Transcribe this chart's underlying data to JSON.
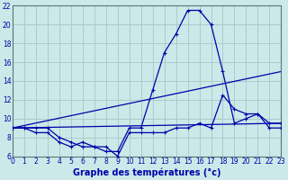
{
  "xlabel": "Graphe des températures (°c)",
  "bg_color": "#cce8e8",
  "grid_color": "#aacccc",
  "line_color": "#0000aa",
  "xmin": 0,
  "xmax": 23,
  "ymin": 6,
  "ymax": 22,
  "yticks": [
    6,
    8,
    10,
    12,
    14,
    16,
    18,
    20,
    22
  ],
  "xticks": [
    0,
    1,
    2,
    3,
    4,
    5,
    6,
    7,
    8,
    9,
    10,
    11,
    12,
    13,
    14,
    15,
    16,
    17,
    18,
    19,
    20,
    21,
    22,
    23
  ],
  "line1_x": [
    0,
    1,
    2,
    3,
    4,
    5,
    6,
    7,
    8,
    9,
    10,
    11,
    12,
    13,
    14,
    15,
    16,
    17,
    18,
    19,
    20,
    21,
    22,
    23
  ],
  "line1_y": [
    9.0,
    9.0,
    9.0,
    9.0,
    8.0,
    7.5,
    7.0,
    7.0,
    6.5,
    6.5,
    9.0,
    9.0,
    13.0,
    17.0,
    19.0,
    21.5,
    21.5,
    20.0,
    15.0,
    9.5,
    10.0,
    10.5,
    9.0,
    9.0
  ],
  "line2_x": [
    0,
    1,
    2,
    3,
    4,
    5,
    6,
    7,
    8,
    9,
    10,
    11,
    12,
    13,
    14,
    15,
    16,
    17,
    18,
    19,
    20,
    21,
    22,
    23
  ],
  "line2_y": [
    9.0,
    9.0,
    8.5,
    8.5,
    7.5,
    7.0,
    7.5,
    7.0,
    7.0,
    6.0,
    8.5,
    8.5,
    8.5,
    8.5,
    9.0,
    9.0,
    9.5,
    9.0,
    12.5,
    11.0,
    10.5,
    10.5,
    9.5,
    9.5
  ],
  "line3_x": [
    0,
    23
  ],
  "line3_y": [
    9.0,
    9.5
  ],
  "line4_x": [
    0,
    23
  ],
  "line4_y": [
    9.0,
    15.0
  ],
  "xlabel_fontsize": 7,
  "tick_fontsize": 5.5
}
